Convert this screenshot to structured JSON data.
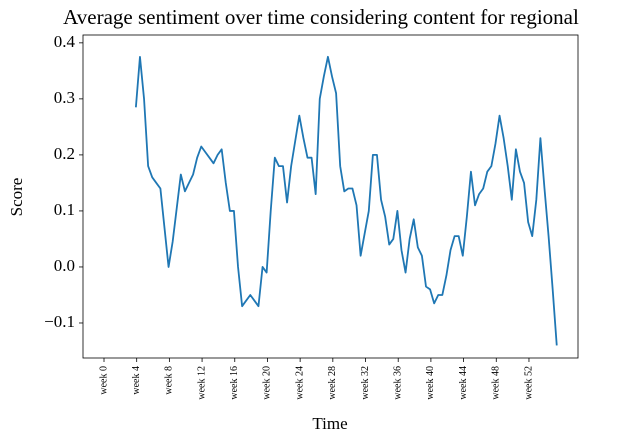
{
  "chart_data": {
    "type": "line",
    "title": "Average sentiment over time considering content for regional",
    "x_label": "Time",
    "y_label": "Score",
    "x": [
      3.9,
      4.4,
      4.9,
      5.4,
      5.9,
      6.4,
      6.9,
      7.4,
      7.9,
      8.4,
      8.9,
      9.4,
      9.9,
      10.4,
      10.9,
      11.4,
      11.9,
      12.4,
      12.9,
      13.4,
      13.9,
      14.4,
      14.9,
      15.4,
      15.9,
      16.4,
      16.9,
      17.4,
      17.9,
      18.4,
      18.9,
      19.4,
      19.9,
      20.4,
      20.9,
      21.4,
      21.9,
      22.4,
      22.9,
      23.4,
      23.9,
      24.4,
      24.9,
      25.4,
      25.9,
      26.4,
      26.9,
      27.4,
      27.9,
      28.4,
      28.9,
      29.4,
      29.9,
      30.4,
      30.9,
      31.4,
      31.9,
      32.4,
      32.9,
      33.4,
      33.9,
      34.4,
      34.9,
      35.4,
      35.9,
      36.4,
      36.9,
      37.4,
      37.9,
      38.4,
      38.9,
      39.4,
      39.9,
      40.4,
      40.9,
      41.4,
      41.9,
      42.4,
      42.9,
      43.4,
      43.9,
      44.4,
      44.9,
      45.4,
      45.9,
      46.4,
      46.9,
      47.4,
      47.9,
      48.4,
      48.9,
      49.4,
      49.9,
      50.4,
      50.9,
      51.4,
      51.9,
      52.4,
      52.9,
      53.4,
      53.9,
      54.4,
      54.9,
      55.4
    ],
    "series": [
      {
        "name": "regional",
        "color": "#1f77b4",
        "values": [
          0.285,
          0.375,
          0.3,
          0.18,
          0.16,
          0.15,
          0.14,
          0.07,
          0.0,
          0.045,
          0.105,
          0.165,
          0.135,
          0.15,
          0.165,
          0.195,
          0.215,
          0.205,
          0.195,
          0.185,
          0.2,
          0.21,
          0.15,
          0.1,
          0.1,
          0.0,
          -0.07,
          -0.06,
          -0.05,
          -0.06,
          -0.07,
          0.0,
          -0.01,
          0.1,
          0.195,
          0.18,
          0.18,
          0.115,
          0.18,
          0.225,
          0.27,
          0.23,
          0.195,
          0.195,
          0.13,
          0.3,
          0.34,
          0.375,
          0.34,
          0.31,
          0.18,
          0.135,
          0.14,
          0.14,
          0.11,
          0.02,
          0.06,
          0.1,
          0.2,
          0.2,
          0.12,
          0.09,
          0.04,
          0.05,
          0.1,
          0.03,
          -0.01,
          0.05,
          0.085,
          0.035,
          0.02,
          -0.035,
          -0.04,
          -0.065,
          -0.05,
          -0.05,
          -0.015,
          0.03,
          0.055,
          0.055,
          0.02,
          0.09,
          0.17,
          0.11,
          0.13,
          0.14,
          0.17,
          0.18,
          0.22,
          0.27,
          0.23,
          0.18,
          0.12,
          0.21,
          0.17,
          0.15,
          0.08,
          0.055,
          0.12,
          0.23,
          0.14,
          0.055,
          -0.04,
          -0.14
        ]
      }
    ],
    "xlim": [
      -2.57,
      58.0
    ],
    "xticks": [
      {
        "value": 0,
        "label": "week 0"
      },
      {
        "value": 4,
        "label": "week 4"
      },
      {
        "value": 8,
        "label": "week 8"
      },
      {
        "value": 12,
        "label": "week 12"
      },
      {
        "value": 16,
        "label": "week 16"
      },
      {
        "value": 20,
        "label": "week 20"
      },
      {
        "value": 24,
        "label": "week 24"
      },
      {
        "value": 28,
        "label": "week 28"
      },
      {
        "value": 32,
        "label": "week 32"
      },
      {
        "value": 36,
        "label": "week 36"
      },
      {
        "value": 40,
        "label": "week 40"
      },
      {
        "value": 44,
        "label": "week 44"
      },
      {
        "value": 48,
        "label": "week 48"
      },
      {
        "value": 52,
        "label": "week 52"
      }
    ],
    "ylim": [
      -0.1625,
      0.414
    ],
    "yticks": [
      {
        "value": -0.1,
        "label": "−0.1"
      },
      {
        "value": 0,
        "label": "0.0"
      },
      0.1,
      0.2,
      0.3,
      0.4
    ],
    "grid": false
  }
}
